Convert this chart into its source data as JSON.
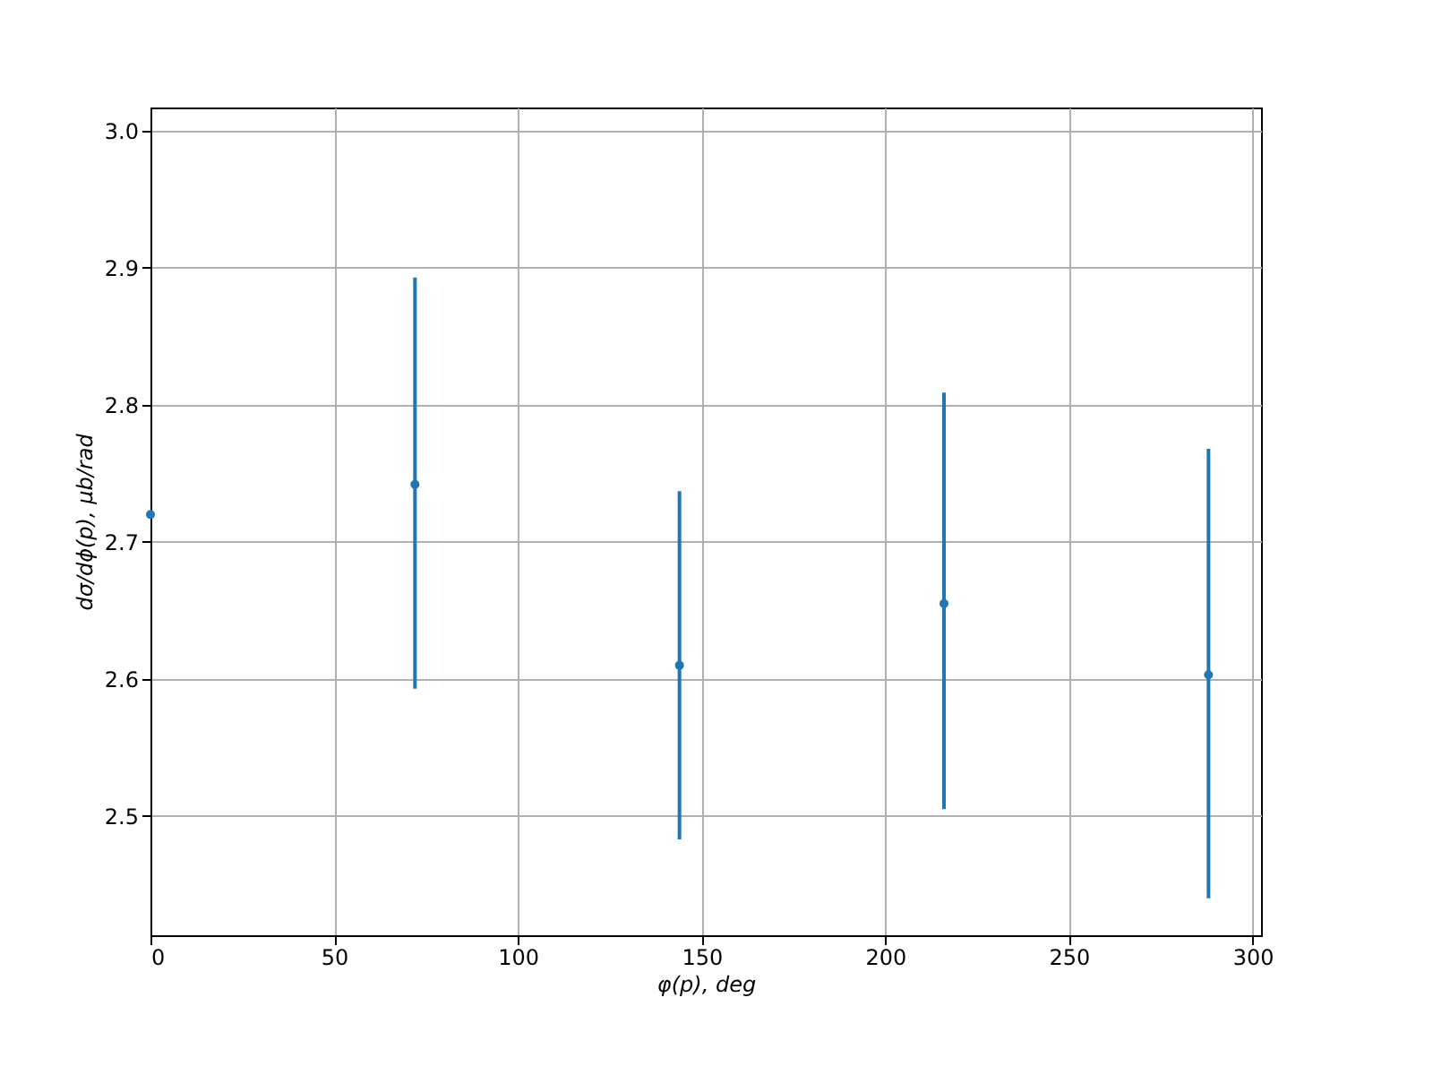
{
  "chart_data": {
    "type": "scatter",
    "xlabel": "φ(p), deg",
    "ylabel": "dσ/dϕ(p), μb/rad",
    "x": [
      0,
      72,
      144,
      216,
      288
    ],
    "series": [
      {
        "color": "#1f77b4",
        "values": [
          2.72,
          2.742,
          2.61,
          2.655,
          2.603
        ],
        "errors": [
          null,
          [
            2.593,
            2.893
          ],
          [
            2.483,
            2.737
          ],
          [
            2.505,
            2.809
          ],
          [
            2.44,
            2.768
          ]
        ]
      }
    ],
    "xlim": [
      0,
      302.3
    ],
    "ylim": [
      2.413,
      3.017
    ],
    "xticks": [
      0,
      50,
      100,
      150,
      200,
      250,
      300
    ],
    "yticks": [
      2.5,
      2.6,
      2.7,
      2.8,
      2.9,
      {
        "value": 3,
        "label": "3.0"
      }
    ],
    "grid": true,
    "marker": "circle"
  }
}
